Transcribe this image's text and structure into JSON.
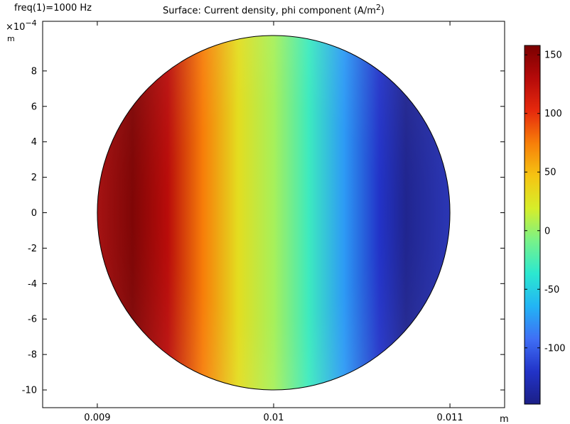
{
  "chart_data": {
    "type": "heatmap",
    "title_prefix": "Surface: Current density, phi component (A/m",
    "title_sup": "2",
    "title_suffix": ")",
    "corner_label": "freq(1)=1000 Hz",
    "y_multiplier_base": "×10",
    "y_multiplier_exp": "−4",
    "y_unit": "m",
    "x_unit": "m",
    "x_ticks": [
      {
        "value": 0.009,
        "label": "0.009"
      },
      {
        "value": 0.01,
        "label": "0.01"
      },
      {
        "value": 0.011,
        "label": "0.011"
      }
    ],
    "x_range": [
      0.00869,
      0.01131
    ],
    "y_ticks": [
      {
        "value": 8,
        "label": "8"
      },
      {
        "value": 6,
        "label": "6"
      },
      {
        "value": 4,
        "label": "4"
      },
      {
        "value": 2,
        "label": "2"
      },
      {
        "value": 0,
        "label": "0"
      },
      {
        "value": -2,
        "label": "-2"
      },
      {
        "value": -4,
        "label": "-4"
      },
      {
        "value": -6,
        "label": "-6"
      },
      {
        "value": -8,
        "label": "-8"
      },
      {
        "value": -10,
        "label": "-10"
      }
    ],
    "y_range": [
      -11.0,
      10.8
    ],
    "domain": {
      "shape": "circle",
      "center_x": 0.01,
      "center_y": 0,
      "radius_x": 0.001,
      "radius_y": 10
    },
    "value_profile": [
      {
        "x": 0.009,
        "value": 140
      },
      {
        "x": 0.0092,
        "value": 157
      },
      {
        "x": 0.0094,
        "value": 128
      },
      {
        "x": 0.0096,
        "value": 75
      },
      {
        "x": 0.0098,
        "value": 30
      },
      {
        "x": 0.01,
        "value": 5
      },
      {
        "x": 0.0102,
        "value": -30
      },
      {
        "x": 0.0104,
        "value": -75
      },
      {
        "x": 0.0106,
        "value": -120
      },
      {
        "x": 0.01075,
        "value": -145
      },
      {
        "x": 0.011,
        "value": -130
      }
    ],
    "colorbar": {
      "colormap": "rainbow",
      "range": [
        -148,
        158
      ],
      "ticks": [
        {
          "value": 150,
          "label": "150"
        },
        {
          "value": 100,
          "label": "100"
        },
        {
          "value": 50,
          "label": "50"
        },
        {
          "value": 0,
          "label": "0"
        },
        {
          "value": -50,
          "label": "-50"
        },
        {
          "value": -100,
          "label": "-100"
        }
      ],
      "stops": [
        "#1b1f86",
        "#2233c8",
        "#3f6ff5",
        "#22b4f5",
        "#2be8d0",
        "#77f28a",
        "#d6ee2a",
        "#f6c412",
        "#f77f09",
        "#e6290d",
        "#b50a0a",
        "#7a0000"
      ]
    }
  }
}
